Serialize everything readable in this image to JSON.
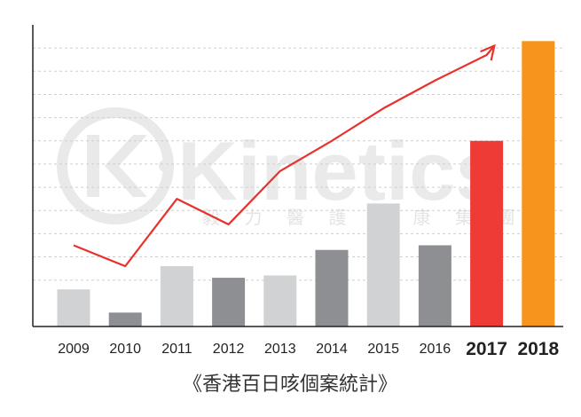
{
  "chart_data": {
    "type": "bar",
    "title": "",
    "caption": "《香港百日咳個案統計》",
    "xlabel": "",
    "ylabel": "",
    "categories": [
      "2009",
      "2010",
      "2011",
      "2012",
      "2013",
      "2014",
      "2015",
      "2016",
      "2017",
      "2018"
    ],
    "values": [
      16,
      6,
      26,
      21,
      22,
      33,
      53,
      35,
      80,
      123
    ],
    "ylim": [
      0,
      130
    ],
    "y_axis_labels_shown": false,
    "grid": "dashed horizontal",
    "legend": "none",
    "trend_arrow": {
      "type": "line",
      "y": [
        35,
        26,
        55,
        44,
        67,
        80,
        94,
        106,
        117,
        null
      ],
      "end": {
        "after": "2017",
        "y": 121
      },
      "color": "#e8312c"
    },
    "bar_colors": [
      "#d1d2d3",
      "#8e8f92",
      "#d1d2d3",
      "#8e8f92",
      "#d1d2d3",
      "#8e8f92",
      "#d1d2d3",
      "#8e8f92",
      "#ef3b36",
      "#f7941d"
    ],
    "highlight_labels": {
      "2017": "#e8312c",
      "2018": "#f7941d"
    },
    "colors": {
      "axis": "#222222",
      "grid": "#cfcfcf",
      "watermark": "#e8e8e8"
    }
  },
  "watermark": {
    "brand": "Kinetics",
    "subtitle": [
      "毅",
      "力",
      "醫",
      "護",
      "健",
      "康",
      "集",
      "團"
    ],
    "registered": "®",
    "icon": "kinetics-logo-icon"
  }
}
